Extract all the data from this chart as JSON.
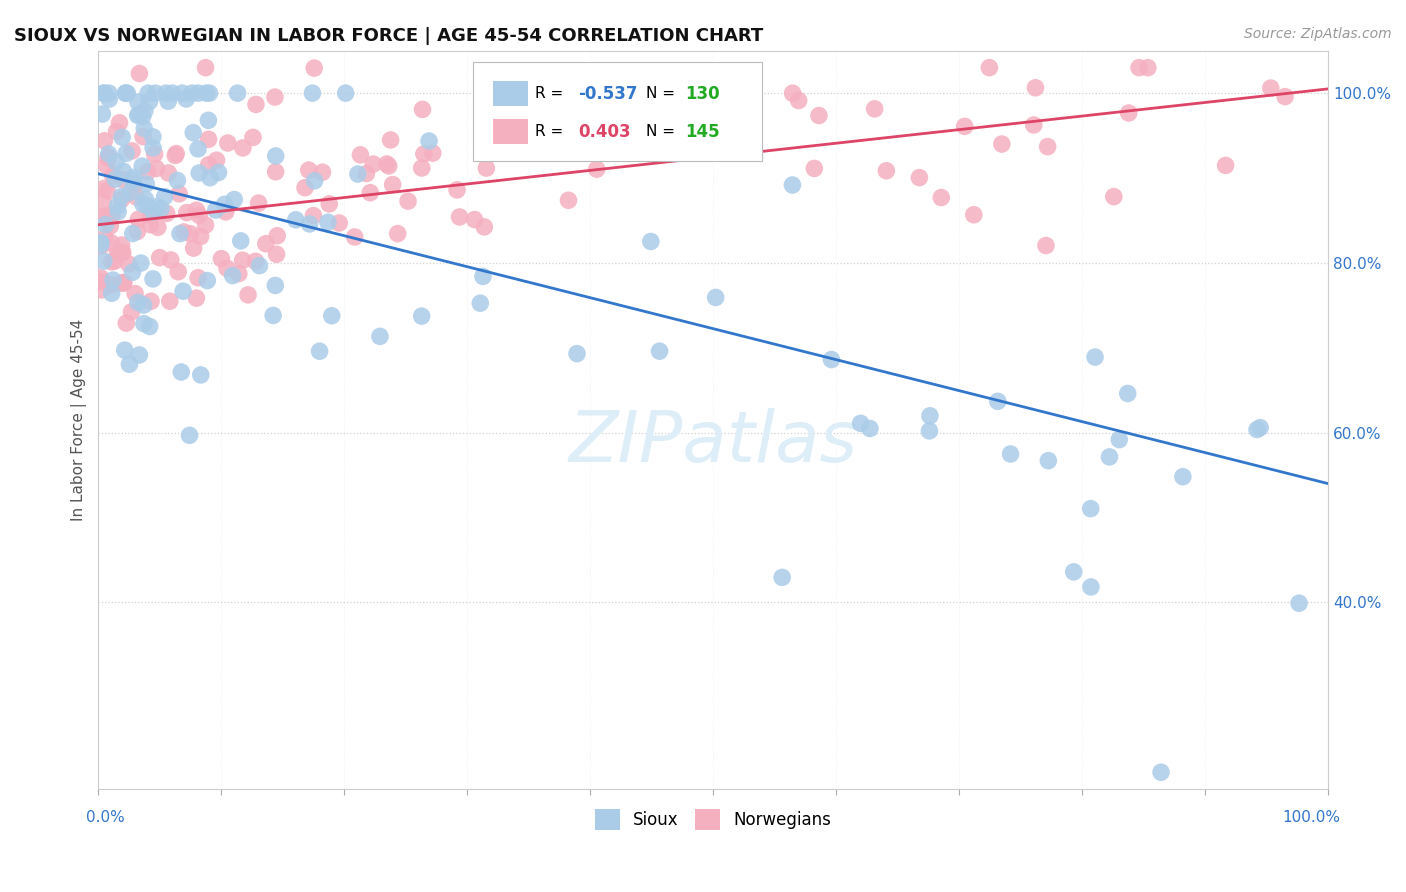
{
  "title": "SIOUX VS NORWEGIAN IN LABOR FORCE | AGE 45-54 CORRELATION CHART",
  "source_text": "Source: ZipAtlas.com",
  "ylabel": "In Labor Force | Age 45-54",
  "legend_r_sioux": "-0.537",
  "legend_n_sioux": "130",
  "legend_r_norw": "0.403",
  "legend_n_norw": "145",
  "sioux_color": "#aacce8",
  "norw_color": "#f5b0c0",
  "sioux_line_color": "#3377cc",
  "norw_line_color": "#dd4466",
  "r_n_color": "#22aa22",
  "watermark_color": "#ddeef8",
  "background_color": "#ffffff",
  "grid_color": "#cccccc",
  "title_color": "#111111",
  "source_color": "#999999",
  "label_color": "#3377cc",
  "ylabel_color": "#555555",
  "sioux_line_start_y": 90.5,
  "sioux_line_end_y": 54.0,
  "norw_line_start_y": 84.5,
  "norw_line_end_y": 100.5,
  "y_min": 18,
  "y_max": 105,
  "x_min": 0,
  "x_max": 100
}
